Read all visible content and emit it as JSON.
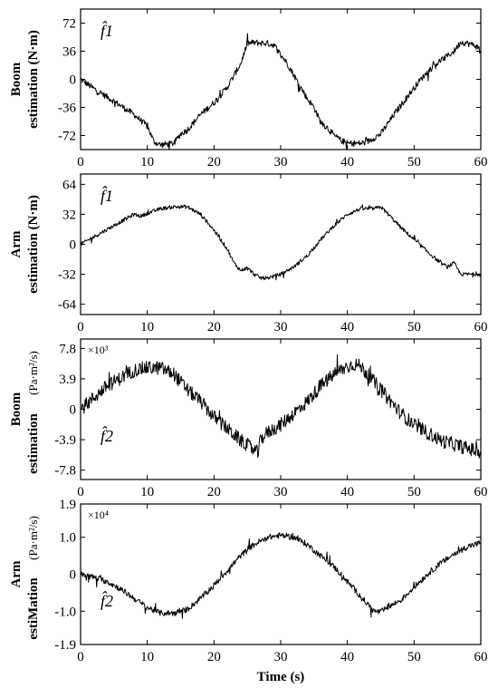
{
  "chart_data": [
    {
      "type": "line",
      "ylabel_line1": "Boom",
      "ylabel_line2": "estimation (N·m)",
      "annotation": "f̂1",
      "multiplier": "",
      "yticks": [
        "72",
        "36",
        "0",
        "-36",
        "-72"
      ],
      "ytick_values": [
        72,
        36,
        0,
        -36,
        -72
      ],
      "ylim": [
        -90,
        90
      ],
      "xticks": [
        "0",
        "10",
        "20",
        "30",
        "40",
        "50",
        "60"
      ],
      "xlim": [
        0,
        60
      ],
      "noise": 4,
      "series": [
        {
          "color": "#000000",
          "points": [
            [
              0,
              0
            ],
            [
              2,
              -12
            ],
            [
              5,
              -28
            ],
            [
              8,
              -45
            ],
            [
              10,
              -60
            ],
            [
              11,
              -80
            ],
            [
              12,
              -84
            ],
            [
              13,
              -83
            ],
            [
              14,
              -82
            ],
            [
              15,
              -70
            ],
            [
              16,
              -65
            ],
            [
              17,
              -55
            ],
            [
              18,
              -45
            ],
            [
              20,
              -30
            ],
            [
              22,
              -10
            ],
            [
              24,
              20
            ],
            [
              25,
              46
            ],
            [
              26,
              47
            ],
            [
              28,
              46
            ],
            [
              29,
              44
            ],
            [
              31,
              20
            ],
            [
              33,
              -10
            ],
            [
              34,
              -25
            ],
            [
              35,
              -36
            ],
            [
              36,
              -55
            ],
            [
              37,
              -62
            ],
            [
              38,
              -72
            ],
            [
              39,
              -78
            ],
            [
              40,
              -82
            ],
            [
              41,
              -82
            ],
            [
              42,
              -82
            ],
            [
              43,
              -80
            ],
            [
              45,
              -70
            ],
            [
              47,
              -45
            ],
            [
              49,
              -22
            ],
            [
              51,
              0
            ],
            [
              53,
              18
            ],
            [
              56,
              36
            ],
            [
              57,
              48
            ],
            [
              59,
              44
            ],
            [
              60,
              38
            ]
          ]
        }
      ]
    },
    {
      "type": "line",
      "ylabel_line1": "Arm",
      "ylabel_line2": "estimation (N·m)",
      "annotation": "f̂1",
      "multiplier": "",
      "yticks": [
        "64",
        "32",
        "0",
        "-32",
        "-64"
      ],
      "ytick_values": [
        64,
        32,
        0,
        -32,
        -64
      ],
      "ylim": [
        -75,
        75
      ],
      "xticks": [
        "0",
        "10",
        "20",
        "30",
        "40",
        "50",
        "60"
      ],
      "xlim": [
        0,
        60
      ],
      "noise": 2,
      "series": [
        {
          "color": "#000000",
          "points": [
            [
              0,
              0
            ],
            [
              2,
              8
            ],
            [
              5,
              20
            ],
            [
              7,
              28
            ],
            [
              8,
              32
            ],
            [
              9,
              30
            ],
            [
              10,
              33
            ],
            [
              12,
              38
            ],
            [
              14,
              40
            ],
            [
              16,
              40
            ],
            [
              18,
              32
            ],
            [
              20,
              15
            ],
            [
              22,
              -5
            ],
            [
              23,
              -20
            ],
            [
              24,
              -28
            ],
            [
              25,
              -25
            ],
            [
              26,
              -32
            ],
            [
              27,
              -36
            ],
            [
              28,
              -36
            ],
            [
              30,
              -32
            ],
            [
              32,
              -24
            ],
            [
              34,
              -12
            ],
            [
              36,
              5
            ],
            [
              38,
              20
            ],
            [
              40,
              32
            ],
            [
              42,
              38
            ],
            [
              44,
              38
            ],
            [
              45,
              40
            ],
            [
              46,
              33
            ],
            [
              48,
              18
            ],
            [
              50,
              5
            ],
            [
              52,
              -8
            ],
            [
              54,
              -20
            ],
            [
              55,
              -24
            ],
            [
              56,
              -20
            ],
            [
              57,
              -32
            ],
            [
              58,
              -32
            ],
            [
              60,
              -32
            ]
          ]
        }
      ]
    },
    {
      "type": "line",
      "ylabel_line1": "Boom",
      "ylabel_line2": "estimation",
      "ylabel_units": "(Pa·m²/s)",
      "annotation": "f̂2",
      "multiplier": "×10³",
      "yticks": [
        "7.8",
        "3.9",
        "0",
        "-3.9",
        "-7.8"
      ],
      "ytick_values": [
        7.8,
        3.9,
        0,
        -3.9,
        -7.8
      ],
      "ylim": [
        -9,
        9
      ],
      "xticks": [
        "0",
        "10",
        "20",
        "30",
        "40",
        "50",
        "60"
      ],
      "xlim": [
        0,
        60
      ],
      "noise": 0.9,
      "series": [
        {
          "color": "#000000",
          "points": [
            [
              0,
              0
            ],
            [
              2,
              1.5
            ],
            [
              4,
              3
            ],
            [
              6,
              4
            ],
            [
              8,
              5
            ],
            [
              10,
              5.3
            ],
            [
              12,
              5.3
            ],
            [
              14,
              4.5
            ],
            [
              16,
              2.5
            ],
            [
              18,
              1
            ],
            [
              20,
              -1
            ],
            [
              22,
              -2.5
            ],
            [
              24,
              -4
            ],
            [
              26,
              -5.2
            ],
            [
              26.6,
              -5.6
            ],
            [
              27,
              -3.8
            ],
            [
              28,
              -3
            ],
            [
              30,
              -2
            ],
            [
              32,
              -0.5
            ],
            [
              34,
              1
            ],
            [
              36,
              3
            ],
            [
              38,
              4.5
            ],
            [
              40,
              5.5
            ],
            [
              41,
              5.8
            ],
            [
              42,
              5.5
            ],
            [
              44,
              3.5
            ],
            [
              46,
              1.5
            ],
            [
              48,
              -0.5
            ],
            [
              50,
              -2
            ],
            [
              52,
              -3
            ],
            [
              54,
              -4
            ],
            [
              56,
              -4.5
            ],
            [
              58,
              -5
            ],
            [
              60,
              -5.5
            ]
          ]
        }
      ]
    },
    {
      "type": "line",
      "ylabel_line1": "Arm",
      "ylabel_line2": "estiMation",
      "ylabel_units": "(Pa·m²/s)",
      "annotation": "f̂2",
      "multiplier": "×10⁴",
      "yticks": [
        "1.9",
        "1.0",
        "0",
        "-1.0",
        "-1.9"
      ],
      "ytick_values": [
        1.9,
        1.0,
        0,
        -1.0,
        -1.9
      ],
      "ylim": [
        -1.9,
        1.9
      ],
      "xticks": [
        "0",
        "10",
        "20",
        "30",
        "40",
        "50",
        "60"
      ],
      "xlim": [
        0,
        60
      ],
      "xlabel": "Time (s)",
      "noise": 0.08,
      "series": [
        {
          "color": "#000000",
          "points": [
            [
              0,
              0
            ],
            [
              2,
              -0.08
            ],
            [
              4,
              -0.2
            ],
            [
              6,
              -0.4
            ],
            [
              8,
              -0.65
            ],
            [
              10,
              -0.9
            ],
            [
              12,
              -1.05
            ],
            [
              14,
              -1.05
            ],
            [
              16,
              -0.95
            ],
            [
              18,
              -0.65
            ],
            [
              20,
              -0.3
            ],
            [
              22,
              0.1
            ],
            [
              24,
              0.5
            ],
            [
              26,
              0.8
            ],
            [
              28,
              1.0
            ],
            [
              30,
              1.05
            ],
            [
              32,
              1.0
            ],
            [
              34,
              0.8
            ],
            [
              36,
              0.5
            ],
            [
              38,
              0.2
            ],
            [
              40,
              -0.2
            ],
            [
              42,
              -0.6
            ],
            [
              44,
              -1.0
            ],
            [
              45,
              -1.02
            ],
            [
              46,
              -0.9
            ],
            [
              48,
              -0.7
            ],
            [
              50,
              -0.35
            ],
            [
              52,
              0
            ],
            [
              54,
              0.3
            ],
            [
              56,
              0.55
            ],
            [
              58,
              0.75
            ],
            [
              60,
              0.85
            ]
          ]
        }
      ]
    }
  ]
}
